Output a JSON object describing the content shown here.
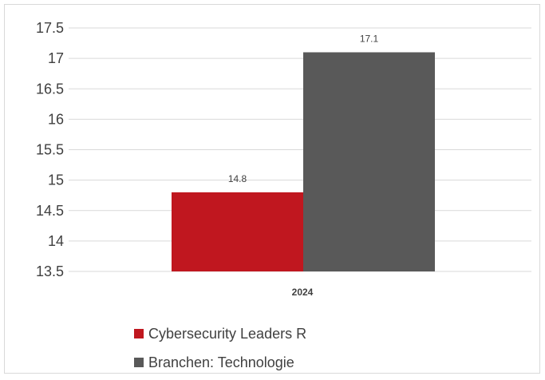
{
  "chart_data": {
    "type": "bar",
    "categories": [
      "2024"
    ],
    "series": [
      {
        "name": "Cybersecurity Leaders R",
        "values": [
          14.8
        ],
        "color": "#c0171f"
      },
      {
        "name": "Branchen: Technologie",
        "values": [
          17.1
        ],
        "color": "#595959"
      }
    ],
    "y_ticks": [
      "13.5",
      "14",
      "14.5",
      "15",
      "15.5",
      "16",
      "16.5",
      "17",
      "17.5"
    ],
    "ylim": [
      13.5,
      17.5
    ],
    "grid": true,
    "legend_position": "bottom"
  }
}
